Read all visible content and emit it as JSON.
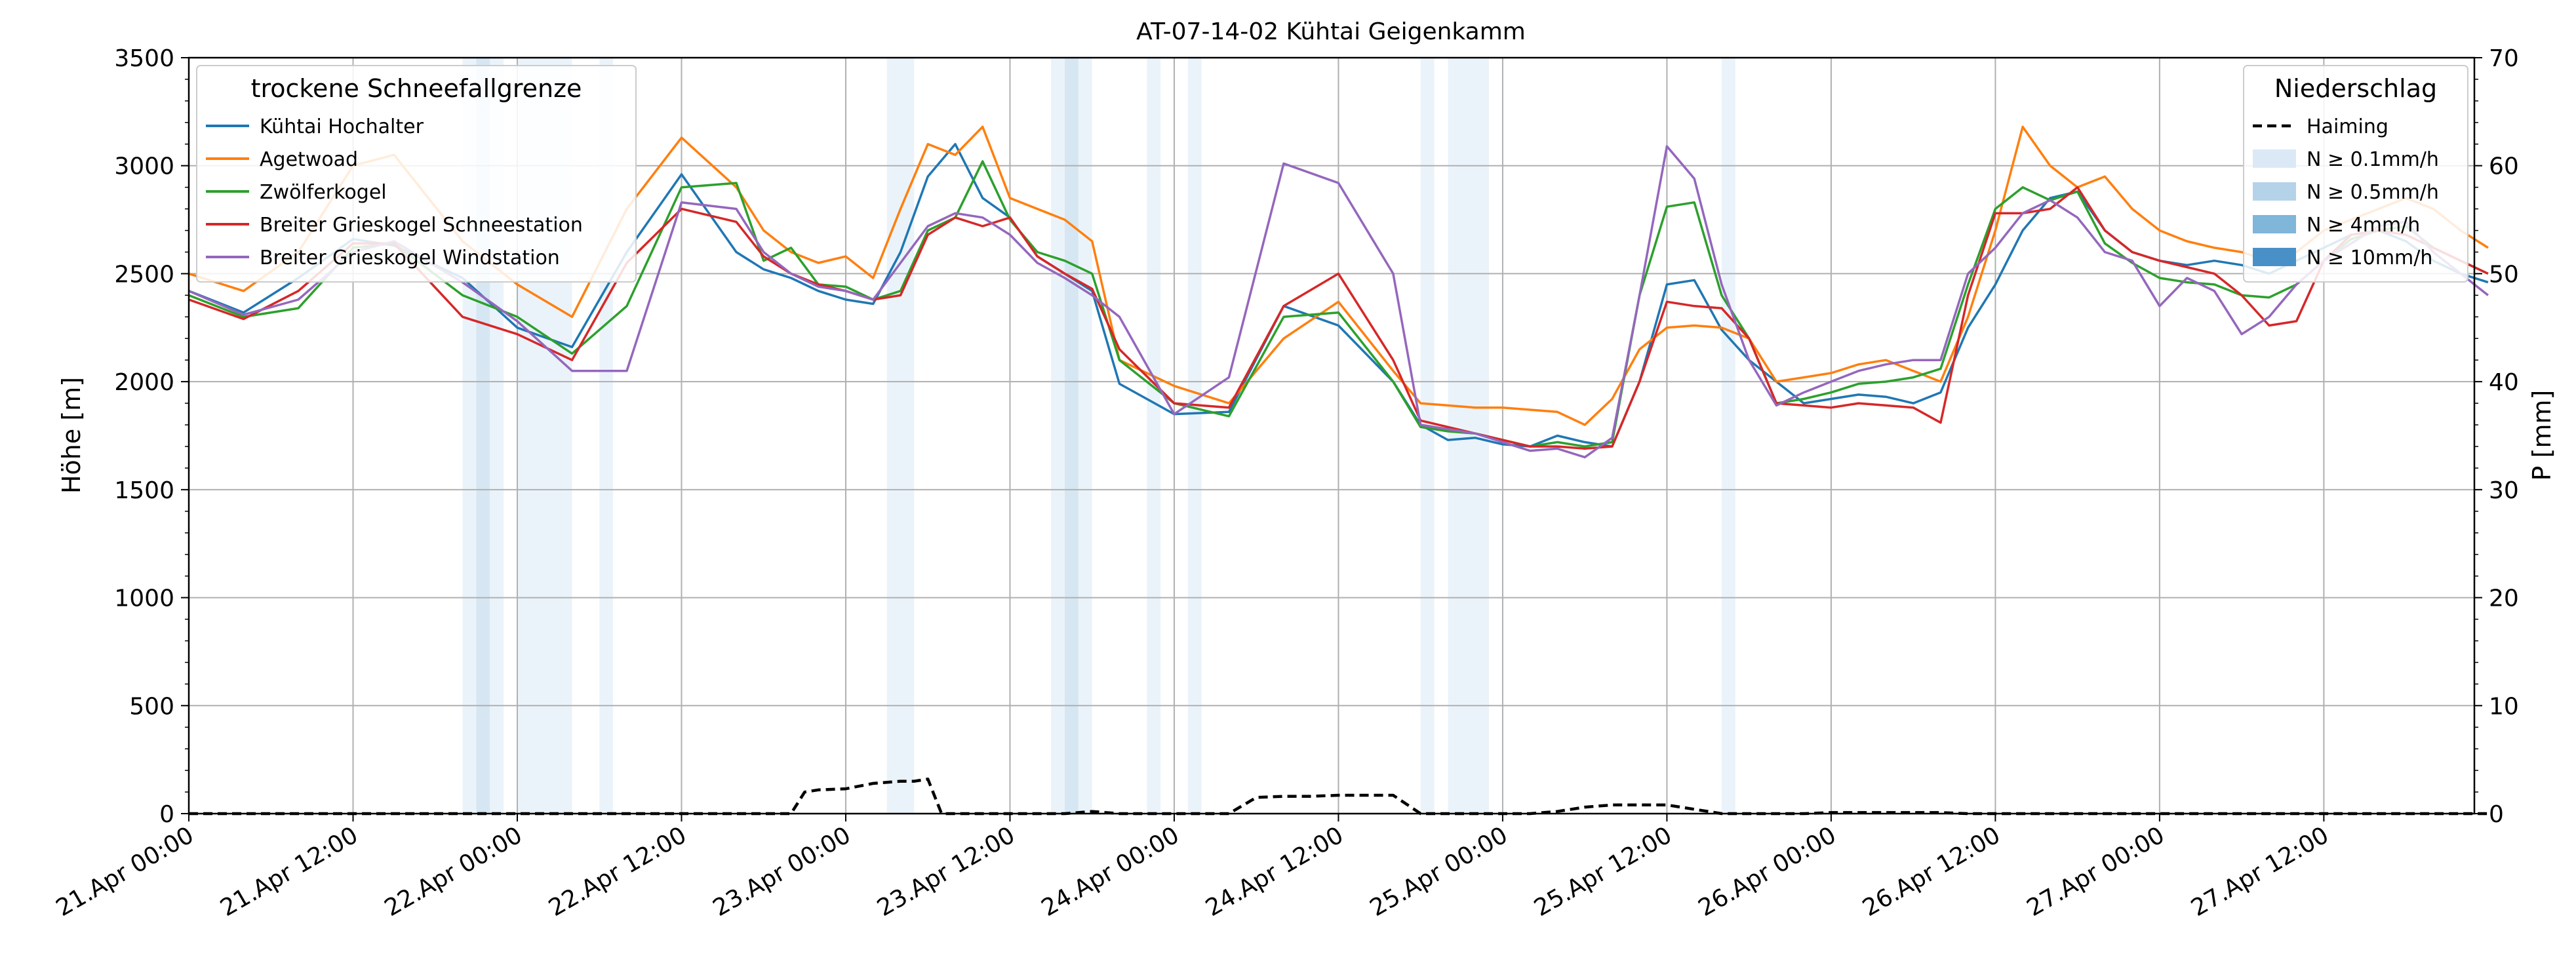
{
  "chart_data": {
    "type": "line",
    "title": "AT-07-14-02 Kühtai Geigenkamm",
    "ylabel_left": "Höhe [m]",
    "ylabel_right": "P [mm]",
    "ylim_left": [
      0,
      3500
    ],
    "ylim_right": [
      0,
      70
    ],
    "y_ticks_left": [
      0,
      500,
      1000,
      1500,
      2000,
      2500,
      3000,
      3500
    ],
    "y_ticks_right": [
      0,
      10,
      20,
      30,
      40,
      50,
      60,
      70
    ],
    "x_start": "2024-04-21 00:00",
    "x_end": "2024-04-27 23:00",
    "x_ticks": [
      {
        "t": "2024-04-21 00:00",
        "label": "21.Apr 00:00"
      },
      {
        "t": "2024-04-21 12:00",
        "label": "21.Apr 12:00"
      },
      {
        "t": "2024-04-22 00:00",
        "label": "22.Apr 00:00"
      },
      {
        "t": "2024-04-22 12:00",
        "label": "22.Apr 12:00"
      },
      {
        "t": "2024-04-23 00:00",
        "label": "23.Apr 00:00"
      },
      {
        "t": "2024-04-23 12:00",
        "label": "23.Apr 12:00"
      },
      {
        "t": "2024-04-24 00:00",
        "label": "24.Apr 00:00"
      },
      {
        "t": "2024-04-24 12:00",
        "label": "24.Apr 12:00"
      },
      {
        "t": "2024-04-25 00:00",
        "label": "25.Apr 00:00"
      },
      {
        "t": "2024-04-25 12:00",
        "label": "25.Apr 12:00"
      },
      {
        "t": "2024-04-26 00:00",
        "label": "26.Apr 00:00"
      },
      {
        "t": "2024-04-26 12:00",
        "label": "26.Apr 12:00"
      },
      {
        "t": "2024-04-27 00:00",
        "label": "27.Apr 00:00"
      },
      {
        "t": "2024-04-27 12:00",
        "label": "27.Apr 12:00"
      }
    ],
    "grid": true,
    "legend_left": {
      "title": "trockene Schneefallgrenze",
      "placement": "top-left"
    },
    "legend_right": {
      "title": "Niederschlag",
      "placement": "top-right",
      "entries": [
        {
          "label": "Haiming",
          "kind": "dashed-line",
          "color": "#000000"
        },
        {
          "label": "N ≥ 0.1mm/h",
          "kind": "patch",
          "color": "#dbe9f6"
        },
        {
          "label": "N ≥ 0.5mm/h",
          "kind": "patch",
          "color": "#b4d3e9"
        },
        {
          "label": "N ≥ 4mm/h",
          "kind": "patch",
          "color": "#7fb6da"
        },
        {
          "label": "N ≥ 10mm/h",
          "kind": "patch",
          "color": "#4a90c8"
        }
      ]
    },
    "precip_bands": [
      {
        "from": "2024-04-21 20:00",
        "to": "2024-04-21 21:00",
        "level": "N ≥ 0.1mm/h"
      },
      {
        "from": "2024-04-21 21:00",
        "to": "2024-04-21 22:00",
        "level": "N ≥ 0.5mm/h"
      },
      {
        "from": "2024-04-21 22:00",
        "to": "2024-04-21 23:00",
        "level": "N ≥ 0.1mm/h"
      },
      {
        "from": "2024-04-22 00:00",
        "to": "2024-04-22 04:00",
        "level": "N ≥ 0.1mm/h"
      },
      {
        "from": "2024-04-22 06:00",
        "to": "2024-04-22 07:00",
        "level": "N ≥ 0.1mm/h"
      },
      {
        "from": "2024-04-23 03:00",
        "to": "2024-04-23 05:00",
        "level": "N ≥ 0.1mm/h"
      },
      {
        "from": "2024-04-23 15:00",
        "to": "2024-04-23 16:00",
        "level": "N ≥ 0.1mm/h"
      },
      {
        "from": "2024-04-23 16:00",
        "to": "2024-04-23 17:00",
        "level": "N ≥ 0.5mm/h"
      },
      {
        "from": "2024-04-23 17:00",
        "to": "2024-04-23 18:00",
        "level": "N ≥ 0.1mm/h"
      },
      {
        "from": "2024-04-23 22:00",
        "to": "2024-04-23 23:00",
        "level": "N ≥ 0.1mm/h"
      },
      {
        "from": "2024-04-24 01:00",
        "to": "2024-04-24 02:00",
        "level": "N ≥ 0.1mm/h"
      },
      {
        "from": "2024-04-24 18:00",
        "to": "2024-04-24 19:00",
        "level": "N ≥ 0.1mm/h"
      },
      {
        "from": "2024-04-24 20:00",
        "to": "2024-04-24 23:00",
        "level": "N ≥ 0.1mm/h"
      },
      {
        "from": "2024-04-25 16:00",
        "to": "2024-04-25 17:00",
        "level": "N ≥ 0.1mm/h"
      }
    ],
    "series": [
      {
        "name": "Kühtai Hochalter",
        "color": "#1f77b4",
        "x_hours_from_start": [
          0,
          4,
          8,
          12,
          15,
          20,
          24,
          28,
          32,
          36,
          40,
          42,
          44,
          46,
          48,
          50,
          52,
          54,
          56,
          58,
          60,
          62,
          64,
          66,
          68,
          72,
          76,
          80,
          84,
          88,
          90,
          92,
          94,
          96,
          98,
          100,
          102,
          104,
          106,
          108,
          110,
          112,
          114,
          116,
          118,
          120,
          122,
          124,
          126,
          128,
          130,
          132,
          134,
          136,
          138,
          140,
          142,
          144,
          146,
          148,
          150,
          152,
          154,
          156,
          158,
          160,
          162,
          164,
          166,
          168
        ],
        "values": [
          2420,
          2320,
          2480,
          2660,
          2630,
          2480,
          2250,
          2160,
          2600,
          2960,
          2600,
          2520,
          2480,
          2420,
          2380,
          2360,
          2600,
          2950,
          3100,
          2850,
          2760,
          2580,
          2500,
          2420,
          1990,
          1850,
          1860,
          2350,
          2260,
          2000,
          1800,
          1730,
          1740,
          1710,
          1700,
          1750,
          1720,
          1700,
          2000,
          2450,
          2470,
          2240,
          2100,
          2000,
          1900,
          1920,
          1940,
          1930,
          1900,
          1950,
          2250,
          2450,
          2700,
          2850,
          2880,
          2700,
          2600,
          2560,
          2540,
          2560,
          2540,
          2500,
          2560,
          2620,
          2680,
          2700,
          2650,
          2560,
          2500,
          2460
        ]
      },
      {
        "name": "Agetwoad",
        "color": "#ff7f0e",
        "x_hours_from_start": [
          0,
          4,
          8,
          12,
          15,
          20,
          24,
          28,
          32,
          36,
          40,
          42,
          44,
          46,
          48,
          50,
          52,
          54,
          56,
          58,
          60,
          62,
          64,
          66,
          68,
          72,
          76,
          80,
          84,
          88,
          90,
          92,
          94,
          96,
          98,
          100,
          102,
          104,
          106,
          108,
          110,
          112,
          114,
          116,
          118,
          120,
          122,
          124,
          126,
          128,
          130,
          132,
          134,
          136,
          138,
          140,
          142,
          144,
          146,
          148,
          150,
          152,
          154,
          156,
          158,
          160,
          162,
          164,
          166,
          168
        ],
        "values": [
          2500,
          2420,
          2600,
          3000,
          3050,
          2650,
          2450,
          2300,
          2800,
          3130,
          2900,
          2700,
          2600,
          2550,
          2580,
          2480,
          2800,
          3100,
          3050,
          3180,
          2850,
          2800,
          2750,
          2650,
          2100,
          1980,
          1900,
          2200,
          2370,
          2050,
          1900,
          1890,
          1880,
          1880,
          1870,
          1860,
          1800,
          1920,
          2150,
          2250,
          2260,
          2250,
          2200,
          2000,
          2020,
          2040,
          2080,
          2100,
          2050,
          2000,
          2300,
          2700,
          3180,
          3000,
          2900,
          2950,
          2800,
          2700,
          2650,
          2620,
          2600,
          2560,
          2600,
          2700,
          2750,
          2800,
          2850,
          2800,
          2700,
          2620
        ]
      },
      {
        "name": "Zwölferkogel",
        "color": "#2ca02c",
        "x_hours_from_start": [
          0,
          4,
          8,
          12,
          15,
          20,
          24,
          28,
          32,
          36,
          40,
          42,
          44,
          46,
          48,
          50,
          52,
          54,
          56,
          58,
          60,
          62,
          64,
          66,
          68,
          72,
          76,
          80,
          84,
          88,
          90,
          92,
          94,
          96,
          98,
          100,
          102,
          104,
          106,
          108,
          110,
          112,
          114,
          116,
          118,
          120,
          122,
          124,
          126,
          128,
          130,
          132,
          134,
          136,
          138,
          140,
          142,
          144,
          146,
          148,
          150,
          152,
          154,
          156,
          158,
          160,
          162,
          164,
          166,
          168
        ],
        "values": [
          2400,
          2300,
          2340,
          2620,
          2640,
          2400,
          2300,
          2130,
          2350,
          2900,
          2920,
          2560,
          2620,
          2450,
          2440,
          2380,
          2420,
          2700,
          2760,
          3020,
          2750,
          2600,
          2560,
          2500,
          2100,
          1900,
          1840,
          2300,
          2320,
          2000,
          1790,
          1770,
          1760,
          1730,
          1700,
          1720,
          1700,
          1720,
          2400,
          2810,
          2830,
          2400,
          2200,
          1900,
          1920,
          1950,
          1990,
          2000,
          2020,
          2060,
          2450,
          2800,
          2900,
          2840,
          2880,
          2640,
          2550,
          2480,
          2460,
          2450,
          2400,
          2390,
          2450,
          2560,
          2660,
          2700,
          2720,
          2620,
          2560,
          2500
        ]
      },
      {
        "name": "Breiter Grieskogel Schneestation",
        "color": "#d62728",
        "x_hours_from_start": [
          0,
          4,
          8,
          12,
          15,
          20,
          24,
          28,
          32,
          36,
          40,
          42,
          44,
          46,
          48,
          50,
          52,
          54,
          56,
          58,
          60,
          62,
          64,
          66,
          68,
          72,
          76,
          80,
          84,
          88,
          90,
          92,
          94,
          96,
          98,
          100,
          102,
          104,
          106,
          108,
          110,
          112,
          114,
          116,
          118,
          120,
          122,
          124,
          126,
          128,
          130,
          132,
          134,
          136,
          138,
          140,
          142,
          144,
          146,
          148,
          150,
          152,
          154,
          156,
          158,
          160,
          162,
          164,
          166,
          168
        ],
        "values": [
          2380,
          2290,
          2420,
          2640,
          2640,
          2300,
          2220,
          2100,
          2550,
          2800,
          2740,
          2580,
          2500,
          2450,
          2420,
          2380,
          2400,
          2680,
          2760,
          2720,
          2760,
          2580,
          2500,
          2430,
          2150,
          1900,
          1880,
          2350,
          2500,
          2100,
          1820,
          1790,
          1760,
          1730,
          1700,
          1700,
          1690,
          1700,
          2000,
          2370,
          2350,
          2340,
          2200,
          1900,
          1890,
          1880,
          1900,
          1890,
          1880,
          1810,
          2400,
          2780,
          2780,
          2800,
          2900,
          2700,
          2600,
          2560,
          2530,
          2500,
          2400,
          2260,
          2280,
          2560,
          2680,
          2700,
          2680,
          2620,
          2560,
          2500
        ]
      },
      {
        "name": "Breiter Grieskogel Windstation",
        "color": "#9467bd",
        "x_hours_from_start": [
          0,
          4,
          8,
          12,
          15,
          20,
          24,
          28,
          32,
          36,
          40,
          42,
          44,
          46,
          48,
          50,
          52,
          54,
          56,
          58,
          60,
          62,
          64,
          66,
          68,
          72,
          76,
          80,
          84,
          88,
          90,
          92,
          94,
          96,
          98,
          100,
          102,
          104,
          106,
          108,
          110,
          112,
          114,
          116,
          118,
          120,
          122,
          124,
          126,
          128,
          130,
          132,
          134,
          136,
          138,
          140,
          142,
          144,
          146,
          148,
          150,
          152,
          154,
          156,
          158,
          160,
          162,
          164,
          166,
          168
        ],
        "values": [
          2420,
          2310,
          2380,
          2600,
          2650,
          2460,
          2280,
          2050,
          2050,
          2830,
          2800,
          2600,
          2500,
          2440,
          2420,
          2380,
          2550,
          2720,
          2780,
          2760,
          2680,
          2550,
          2480,
          2400,
          2300,
          1850,
          2020,
          3010,
          2920,
          2500,
          1800,
          1780,
          1760,
          1720,
          1680,
          1690,
          1650,
          1740,
          2400,
          3090,
          2940,
          2450,
          2100,
          1890,
          1950,
          2000,
          2050,
          2080,
          2100,
          2100,
          2500,
          2620,
          2780,
          2840,
          2760,
          2600,
          2560,
          2350,
          2480,
          2420,
          2220,
          2300,
          2450,
          2560,
          2640,
          2720,
          2740,
          2600,
          2500,
          2400
        ]
      },
      {
        "name": "Haiming",
        "axis": "right",
        "color": "#000000",
        "dashed": true,
        "x_hours_from_start": [
          0,
          44,
          45,
          46,
          48,
          50,
          52,
          53,
          54,
          55,
          56,
          58,
          60,
          62,
          64,
          66,
          68,
          70,
          72,
          74,
          76,
          78,
          80,
          82,
          84,
          86,
          88,
          90,
          92,
          94,
          96,
          98,
          100,
          102,
          104,
          106,
          108,
          112,
          114,
          116,
          118,
          120,
          122,
          124,
          126,
          128,
          130,
          132,
          134,
          136,
          138,
          140,
          142,
          144,
          146,
          148,
          150,
          152,
          154,
          156,
          158,
          160,
          162,
          164,
          166,
          168
        ],
        "values": [
          0,
          0,
          2,
          2.2,
          2.3,
          2.8,
          3,
          3,
          3.2,
          0,
          0,
          0,
          0,
          0,
          0,
          0.2,
          0,
          0,
          0,
          0,
          0,
          1.5,
          1.6,
          1.6,
          1.7,
          1.7,
          1.7,
          0,
          0,
          0,
          0,
          0,
          0.2,
          0.6,
          0.8,
          0.8,
          0.8,
          0,
          0,
          0,
          0,
          0.1,
          0.1,
          0.1,
          0.1,
          0.1,
          0,
          0,
          0,
          0,
          0,
          0,
          0,
          0,
          0,
          0,
          0,
          0,
          0,
          0,
          0,
          0,
          0,
          0,
          0,
          0
        ]
      }
    ]
  }
}
